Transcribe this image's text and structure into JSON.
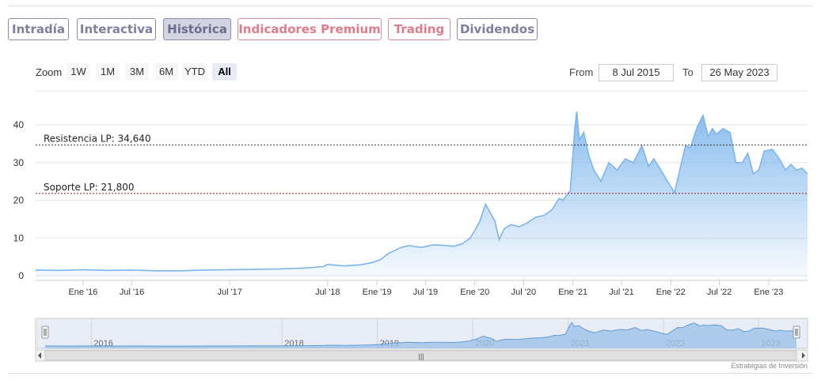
{
  "tabs": [
    {
      "label": "Intradía",
      "state": "normal"
    },
    {
      "label": "Interactiva",
      "state": "normal"
    },
    {
      "label": "Histórica",
      "state": "active"
    },
    {
      "label": "Indicadores Premium",
      "state": "premium"
    },
    {
      "label": "Trading",
      "state": "premium"
    },
    {
      "label": "Dividendos",
      "state": "normal"
    }
  ],
  "range_selector": {
    "zoom_label": "Zoom",
    "buttons": [
      "1W",
      "1M",
      "3M",
      "6M",
      "YTD",
      "All"
    ],
    "selected": "All",
    "from_label": "From",
    "from_value": "8 Jul 2015",
    "to_label": "To",
    "to_value": "26 May 2023"
  },
  "chart_data": {
    "type": "area",
    "title": "",
    "xlabel": "",
    "ylabel": "",
    "x_range": [
      "2015-07-08",
      "2023-05-26"
    ],
    "ylim": [
      0,
      45
    ],
    "y_ticks": [
      0,
      10,
      20,
      30,
      40
    ],
    "x_tick_labels": [
      {
        "label": "Ene '16",
        "date": "2016-01-01"
      },
      {
        "label": "Jul '16",
        "date": "2016-07-01"
      },
      {
        "label": "Jul '17",
        "date": "2017-07-01"
      },
      {
        "label": "Jul '18",
        "date": "2018-07-01"
      },
      {
        "label": "Ene '19",
        "date": "2019-01-01"
      },
      {
        "label": "Jul '19",
        "date": "2019-07-01"
      },
      {
        "label": "Ene '20",
        "date": "2020-01-01"
      },
      {
        "label": "Jul '20",
        "date": "2020-07-01"
      },
      {
        "label": "Ene '21",
        "date": "2021-01-01"
      },
      {
        "label": "Jul '21",
        "date": "2021-07-01"
      },
      {
        "label": "Ene '22",
        "date": "2022-01-01"
      },
      {
        "label": "Jul '22",
        "date": "2022-07-01"
      },
      {
        "label": "Ene '23",
        "date": "2023-01-01"
      }
    ],
    "grid": true,
    "line_color": "#7cb5ec",
    "reference_lines": [
      {
        "label": "Resistencia LP: 34,640",
        "value": 34.64,
        "color": "#333333"
      },
      {
        "label": "Soporte LP: 21,800",
        "value": 21.8,
        "color": "#8b1a1a"
      }
    ],
    "series": [
      {
        "x": [
          "2015-07-08",
          "2015-10-01",
          "2016-01-01",
          "2016-04-01",
          "2016-07-01",
          "2016-10-01",
          "2017-01-01",
          "2017-04-01",
          "2017-07-01",
          "2017-10-01",
          "2018-01-01",
          "2018-04-01",
          "2018-06-15",
          "2018-07-01",
          "2018-09-01",
          "2018-11-01",
          "2018-12-15",
          "2019-01-15",
          "2019-02-15",
          "2019-04-01",
          "2019-05-01",
          "2019-06-15",
          "2019-08-01",
          "2019-09-15",
          "2019-10-15",
          "2019-11-15",
          "2019-12-15",
          "2020-01-01",
          "2020-01-20",
          "2020-02-10",
          "2020-02-25",
          "2020-03-16",
          "2020-04-01",
          "2020-04-20",
          "2020-05-15",
          "2020-06-15",
          "2020-07-15",
          "2020-08-15",
          "2020-09-15",
          "2020-10-15",
          "2020-11-10",
          "2020-11-25",
          "2020-12-10",
          "2020-12-22",
          "2021-01-08",
          "2021-01-15",
          "2021-01-25",
          "2021-02-10",
          "2021-03-01",
          "2021-03-20",
          "2021-04-15",
          "2021-05-15",
          "2021-06-15",
          "2021-07-15",
          "2021-08-15",
          "2021-09-15",
          "2021-10-10",
          "2021-10-30",
          "2021-11-25",
          "2021-12-20",
          "2022-01-15",
          "2022-02-10",
          "2022-02-25",
          "2022-03-15",
          "2022-04-10",
          "2022-05-01",
          "2022-05-20",
          "2022-06-05",
          "2022-06-20",
          "2022-07-15",
          "2022-08-10",
          "2022-09-01",
          "2022-09-25",
          "2022-10-15",
          "2022-11-05",
          "2022-11-25",
          "2022-12-15",
          "2023-01-15",
          "2023-02-10",
          "2023-03-05",
          "2023-03-25",
          "2023-04-15",
          "2023-05-05",
          "2023-05-26"
        ],
        "y": [
          1.5,
          1.4,
          1.6,
          1.4,
          1.5,
          1.3,
          1.3,
          1.5,
          1.6,
          1.7,
          1.8,
          2.0,
          2.4,
          3.0,
          2.6,
          2.9,
          3.5,
          4.3,
          6.0,
          7.5,
          8.0,
          7.5,
          8.2,
          8.0,
          7.8,
          8.5,
          10.0,
          12.0,
          14.5,
          19.0,
          17.0,
          14.5,
          9.5,
          12.5,
          13.5,
          13.0,
          14.0,
          15.5,
          16.0,
          17.5,
          20.5,
          20.0,
          21.5,
          22.5,
          39.0,
          43.5,
          36.0,
          38.0,
          32.0,
          28.0,
          25.0,
          30.0,
          28.0,
          31.0,
          30.0,
          34.5,
          29.0,
          31.0,
          28.0,
          25.0,
          22.0,
          30.0,
          34.5,
          34.0,
          39.5,
          42.5,
          37.0,
          39.0,
          37.5,
          39.0,
          38.0,
          30.0,
          30.0,
          32.5,
          27.0,
          28.0,
          33.0,
          33.5,
          31.0,
          28.0,
          29.5,
          28.0,
          28.5,
          27.0
        ]
      }
    ],
    "navigator": {
      "year_labels": [
        {
          "label": "2016",
          "date": "2016-01-01"
        },
        {
          "label": "2018",
          "date": "2018-01-01"
        },
        {
          "label": "2019",
          "date": "2019-01-01"
        },
        {
          "label": "2020",
          "date": "2020-01-01"
        },
        {
          "label": "2021",
          "date": "2021-01-01"
        },
        {
          "label": "2022",
          "date": "2022-01-01"
        },
        {
          "label": "2023",
          "date": "2023-01-01"
        }
      ],
      "scrollbar_grip": "|||"
    }
  },
  "credits": "Estrategias de Inversión"
}
